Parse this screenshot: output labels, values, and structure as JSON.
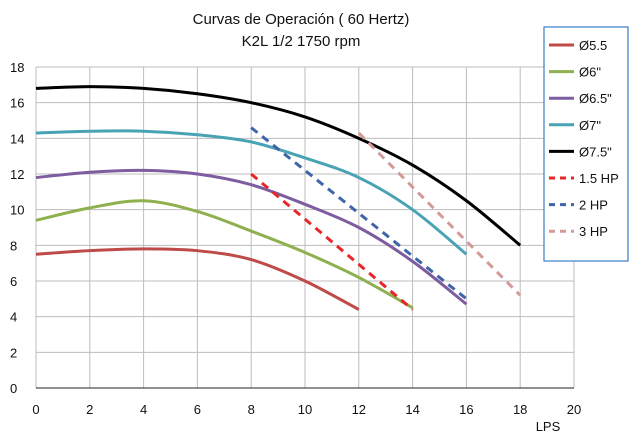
{
  "chart_data": {
    "type": "line",
    "title": "Curvas de Operación ( 60 Hertz)",
    "subtitle": "K2L 1/2 1750 rpm",
    "xlabel": "LPS",
    "ylabel": "",
    "xlim": [
      0,
      20
    ],
    "ylim": [
      0,
      18
    ],
    "x_ticks": [
      0,
      2,
      4,
      6,
      8,
      10,
      12,
      14,
      16,
      18,
      20
    ],
    "y_ticks": [
      0,
      2,
      4,
      6,
      8,
      10,
      12,
      14,
      16,
      18
    ],
    "grid": true,
    "legend_position": "top-right",
    "series": [
      {
        "name": "Ø5.5",
        "color": "#be4b48",
        "dash": "solid",
        "x": [
          0,
          2,
          4,
          6,
          8,
          10,
          12
        ],
        "y": [
          7.5,
          7.7,
          7.8,
          7.7,
          7.2,
          6.0,
          4.4
        ]
      },
      {
        "name": "Ø6\"",
        "color": "#8fb04f",
        "dash": "solid",
        "x": [
          0,
          2,
          4,
          6,
          8,
          10,
          12,
          14
        ],
        "y": [
          9.4,
          10.1,
          10.5,
          9.9,
          8.8,
          7.6,
          6.2,
          4.5
        ]
      },
      {
        "name": "Ø6.5\"",
        "color": "#7d5ca0",
        "dash": "solid",
        "x": [
          0,
          2,
          4,
          6,
          8,
          10,
          12,
          14,
          16
        ],
        "y": [
          11.8,
          12.1,
          12.2,
          12.0,
          11.4,
          10.3,
          9.0,
          7.1,
          4.7
        ]
      },
      {
        "name": "Ø7\"",
        "color": "#4aa3b5",
        "dash": "solid",
        "x": [
          0,
          2,
          4,
          6,
          8,
          10,
          12,
          14,
          16
        ],
        "y": [
          14.3,
          14.4,
          14.4,
          14.2,
          13.8,
          12.9,
          11.8,
          10.0,
          7.5
        ]
      },
      {
        "name": "Ø7.5\"",
        "color": "#000000",
        "dash": "solid",
        "x": [
          0,
          2,
          4,
          6,
          8,
          10,
          12,
          14,
          16,
          18
        ],
        "y": [
          16.8,
          16.9,
          16.8,
          16.5,
          16.0,
          15.2,
          14.0,
          12.5,
          10.5,
          8.0
        ]
      },
      {
        "name": "1.5 HP",
        "color": "#e8262a",
        "dash": "dashed",
        "x": [
          8,
          14
        ],
        "y": [
          12.0,
          4.4
        ]
      },
      {
        "name": "2 HP",
        "color": "#3f64a8",
        "dash": "dashed",
        "x": [
          8,
          16
        ],
        "y": [
          14.6,
          5.0
        ]
      },
      {
        "name": "3 HP",
        "color": "#d49a98",
        "dash": "dashed",
        "x": [
          12,
          18
        ],
        "y": [
          14.3,
          5.2
        ]
      }
    ]
  }
}
